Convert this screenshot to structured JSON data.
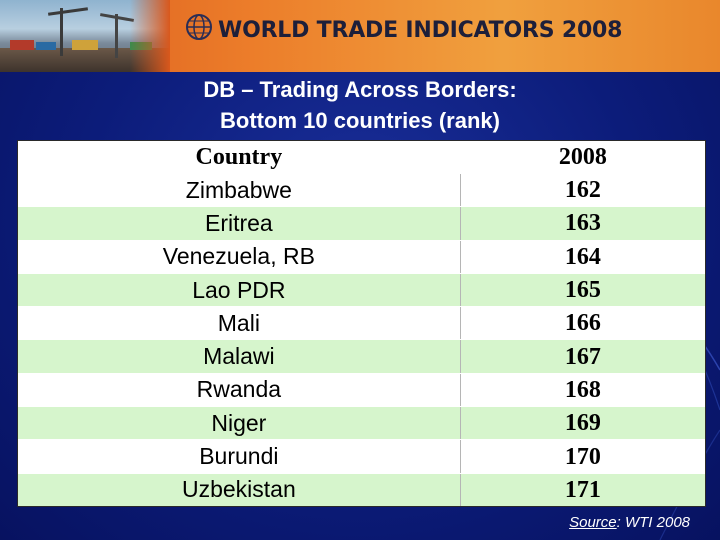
{
  "banner": {
    "title": "WORLD TRADE INDICATORS 2008"
  },
  "heading": {
    "line1": "DB – Trading Across Borders:",
    "line2": "Bottom 10 countries (rank)"
  },
  "table": {
    "headers": [
      "Country",
      "2008"
    ],
    "rows": [
      {
        "country": "Zimbabwe",
        "rank": "162"
      },
      {
        "country": "Eritrea",
        "rank": "163"
      },
      {
        "country": "Venezuela, RB",
        "rank": "164"
      },
      {
        "country": "Lao PDR",
        "rank": "165"
      },
      {
        "country": "Mali",
        "rank": "166"
      },
      {
        "country": "Malawi",
        "rank": "167"
      },
      {
        "country": "Rwanda",
        "rank": "168"
      },
      {
        "country": "Niger",
        "rank": "169"
      },
      {
        "country": "Burundi",
        "rank": "170"
      },
      {
        "country": "Uzbekistan",
        "rank": "171"
      }
    ]
  },
  "source": {
    "label": "Source",
    "text": ": WTI 2008"
  },
  "colors": {
    "background": "#0c1c7a",
    "banner": "#ec7d2a",
    "row_white": "#ffffff",
    "row_green": "#d6f5cc"
  }
}
